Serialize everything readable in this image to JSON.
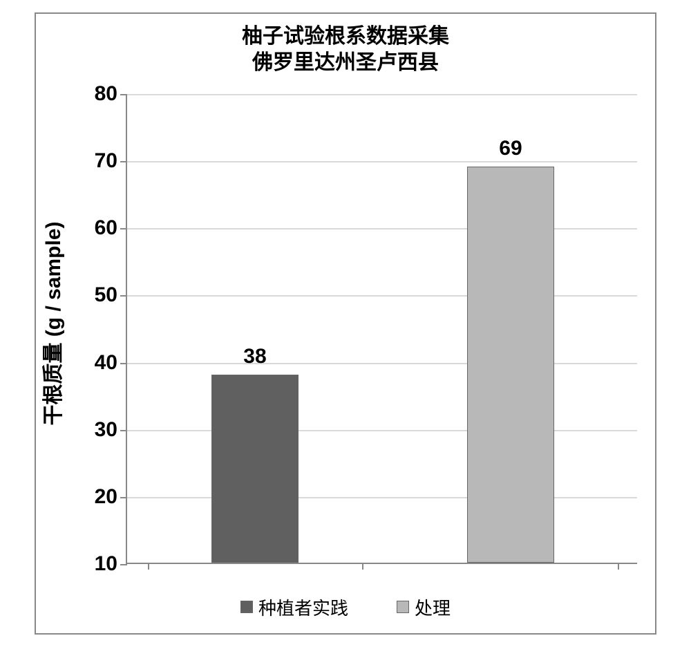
{
  "chart": {
    "type": "bar",
    "title_line1": "柚子试验根系数据采集",
    "title_line2": "佛罗里达州圣卢西县",
    "title_fontsize": 30,
    "y_axis_title": "干根质量 (g / sample)",
    "y_axis_title_fontsize": 30,
    "y_min": 10,
    "y_max": 80,
    "y_tick_step": 10,
    "tick_fontsize": 30,
    "bar_width_ratio": 0.34,
    "categories": [
      "种植者实践",
      "处理"
    ],
    "values": [
      38,
      69
    ],
    "value_label_fontsize": 30,
    "bar_colors": [
      "#606060",
      "#b8b8b8"
    ],
    "legend_fontsize": 26,
    "grid_color": "#d9d9d9",
    "axis_color": "#888888",
    "background_color": "#ffffff",
    "text_color": "#000000"
  }
}
